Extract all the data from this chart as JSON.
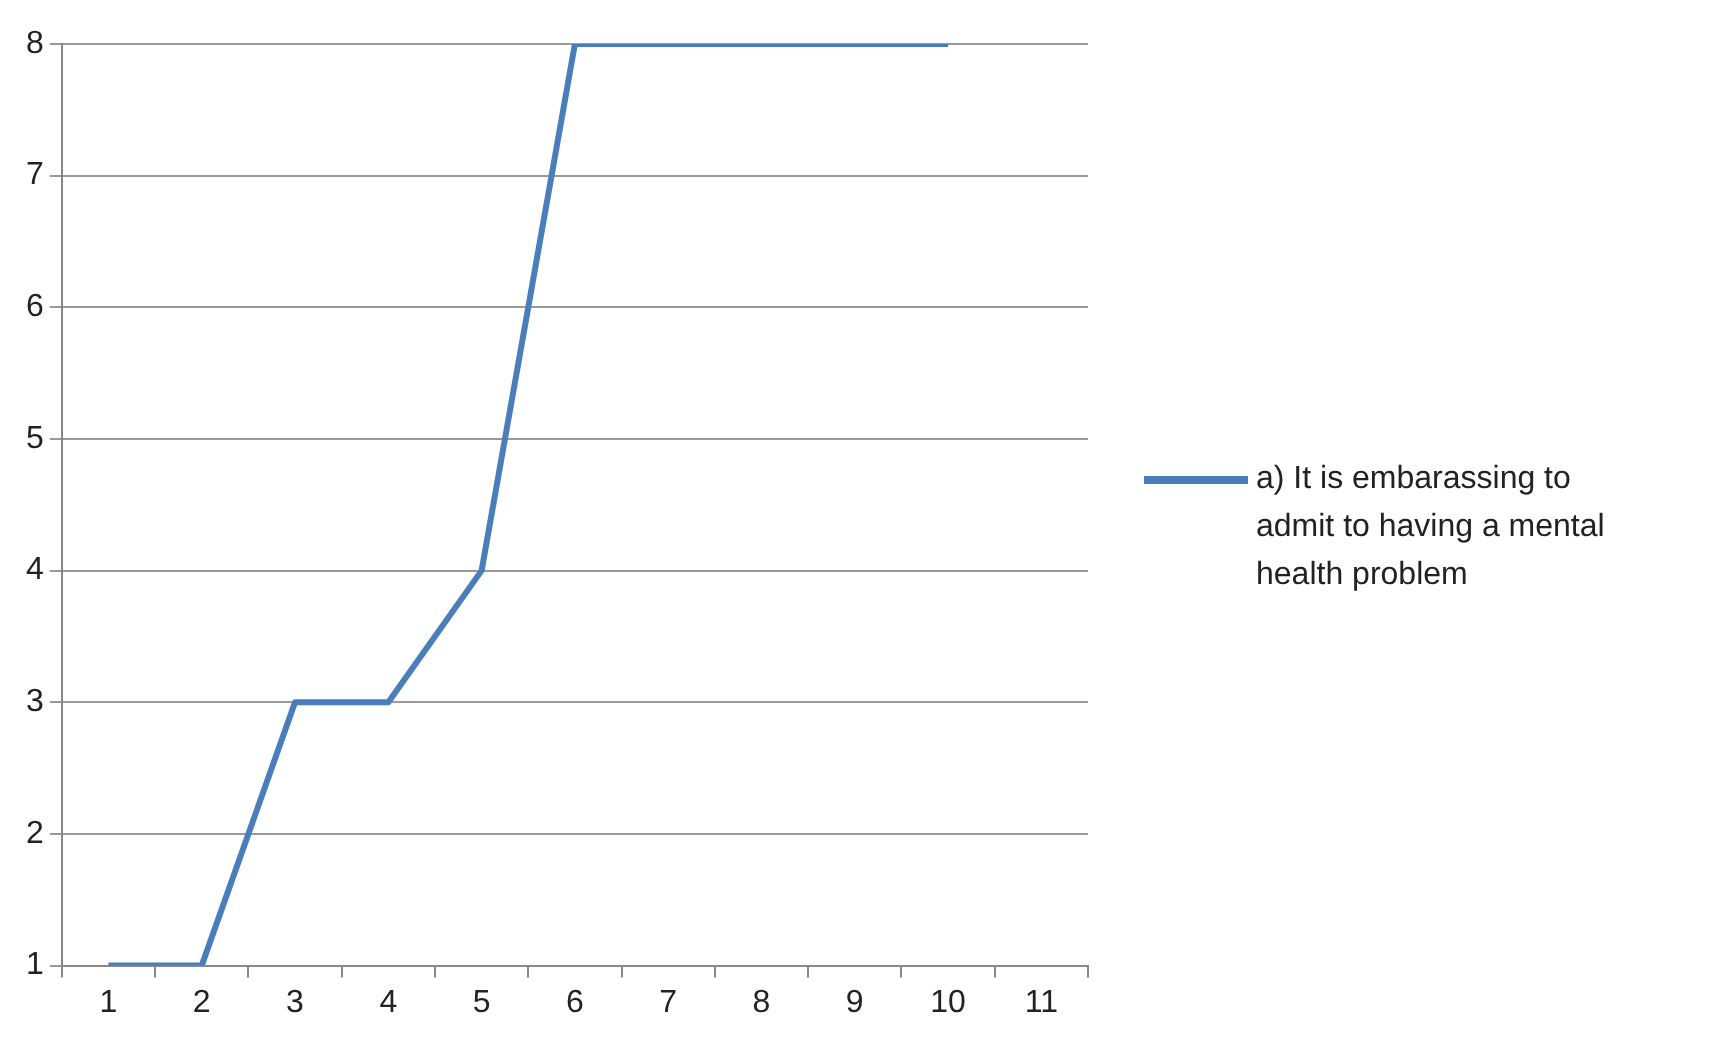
{
  "chart_data": {
    "type": "line",
    "categories": [
      "1",
      "2",
      "3",
      "4",
      "5",
      "6",
      "7",
      "8",
      "9",
      "10",
      "11"
    ],
    "series": [
      {
        "name": "a) It is embarassing to admit to having a mental health problem",
        "color": "#4a7ebb",
        "values": [
          1,
          1,
          3,
          3,
          4,
          8,
          8,
          8,
          8,
          8,
          null
        ]
      }
    ],
    "ylim": [
      1,
      8
    ],
    "yticks": [
      1,
      2,
      3,
      4,
      5,
      6,
      7,
      8
    ],
    "grid": "y",
    "legend": "right",
    "marker": "none"
  }
}
